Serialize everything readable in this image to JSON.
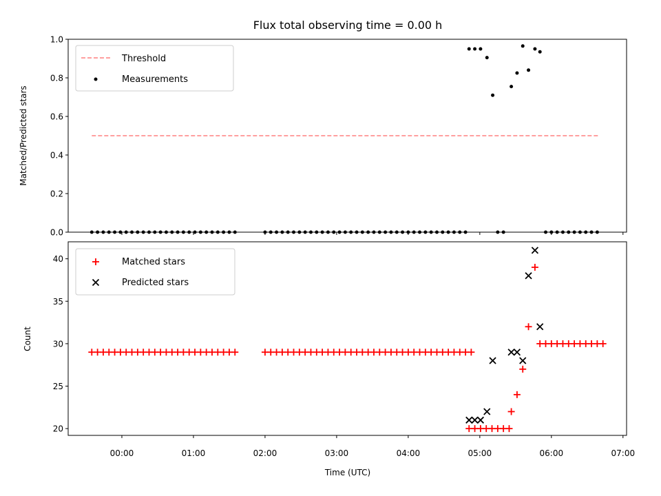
{
  "title": "Flux total observing time = 0.00 h",
  "chart_data": [
    {
      "type": "scatter",
      "ylabel": "Matched/Predicted stars",
      "xlim": [
        -0.75,
        7.05
      ],
      "ylim": [
        0,
        1.0
      ],
      "yticks": [
        "0.0",
        "0.2",
        "0.4",
        "0.6",
        "0.8",
        "1.0"
      ],
      "legend_position": "top-left",
      "threshold": {
        "name": "Threshold",
        "y": 0.5,
        "x_range": [
          -0.42,
          6.67
        ],
        "color": "#ff7f7f",
        "style": "dashed"
      },
      "measurements": {
        "name": "Measurements",
        "color": "#000000",
        "zero_x": [
          -0.42,
          -0.34,
          -0.26,
          -0.18,
          -0.1,
          -0.02,
          0.06,
          0.14,
          0.22,
          0.3,
          0.38,
          0.46,
          0.54,
          0.62,
          0.7,
          0.78,
          0.86,
          0.94,
          1.02,
          1.1,
          1.18,
          1.26,
          1.34,
          1.42,
          1.5,
          1.58,
          2.0,
          2.08,
          2.16,
          2.24,
          2.32,
          2.4,
          2.48,
          2.56,
          2.64,
          2.72,
          2.8,
          2.88,
          2.96,
          3.04,
          3.12,
          3.2,
          3.28,
          3.36,
          3.44,
          3.52,
          3.6,
          3.68,
          3.76,
          3.84,
          3.92,
          4.0,
          4.08,
          4.16,
          4.24,
          4.32,
          4.4,
          4.48,
          4.56,
          4.64,
          4.72,
          4.8,
          5.25,
          5.33,
          5.92,
          6.0,
          6.08,
          6.16,
          6.24,
          6.32,
          6.4,
          6.48,
          6.56,
          6.64
        ],
        "points": [
          {
            "x": 4.85,
            "y": 0.95
          },
          {
            "x": 4.93,
            "y": 0.95
          },
          {
            "x": 5.01,
            "y": 0.95
          },
          {
            "x": 5.1,
            "y": 0.905
          },
          {
            "x": 5.18,
            "y": 0.71
          },
          {
            "x": 5.44,
            "y": 0.755
          },
          {
            "x": 5.52,
            "y": 0.825
          },
          {
            "x": 5.6,
            "y": 0.965
          },
          {
            "x": 5.68,
            "y": 0.84
          },
          {
            "x": 5.77,
            "y": 0.95
          },
          {
            "x": 5.84,
            "y": 0.935
          }
        ]
      }
    },
    {
      "type": "scatter",
      "xlabel": "Time (UTC)",
      "ylabel": "Count",
      "xlim": [
        -0.75,
        7.05
      ],
      "ylim": [
        19.2,
        42.0
      ],
      "yticks": [
        "20",
        "25",
        "30",
        "35",
        "40"
      ],
      "xticks": [
        "00:00",
        "01:00",
        "02:00",
        "03:00",
        "04:00",
        "05:00",
        "06:00",
        "07:00"
      ],
      "legend_position": "top-left",
      "series": [
        {
          "name": "Matched stars",
          "marker": "plus",
          "color": "#ff0000",
          "runs": [
            {
              "x_start": -0.42,
              "step": 0.08,
              "n": 26,
              "y": 29
            },
            {
              "x_start": 2.0,
              "step": 0.08,
              "n": 37,
              "y": 29
            },
            {
              "x_start": 4.85,
              "step": 0.08,
              "n": 8,
              "y": 20
            },
            {
              "x_start": 5.84,
              "step": 0.08,
              "n": 12,
              "y": 30
            }
          ],
          "points": [
            {
              "x": 5.44,
              "y": 22
            },
            {
              "x": 5.52,
              "y": 24
            },
            {
              "x": 5.6,
              "y": 27
            },
            {
              "x": 5.68,
              "y": 32
            },
            {
              "x": 5.77,
              "y": 39
            }
          ]
        },
        {
          "name": "Predicted stars",
          "marker": "x",
          "color": "#000000",
          "points": [
            {
              "x": 4.85,
              "y": 21
            },
            {
              "x": 4.93,
              "y": 21
            },
            {
              "x": 5.01,
              "y": 21
            },
            {
              "x": 5.1,
              "y": 22
            },
            {
              "x": 5.18,
              "y": 28
            },
            {
              "x": 5.44,
              "y": 29
            },
            {
              "x": 5.52,
              "y": 29
            },
            {
              "x": 5.6,
              "y": 28
            },
            {
              "x": 5.68,
              "y": 38
            },
            {
              "x": 5.77,
              "y": 41
            },
            {
              "x": 5.84,
              "y": 32
            }
          ]
        }
      ]
    }
  ]
}
